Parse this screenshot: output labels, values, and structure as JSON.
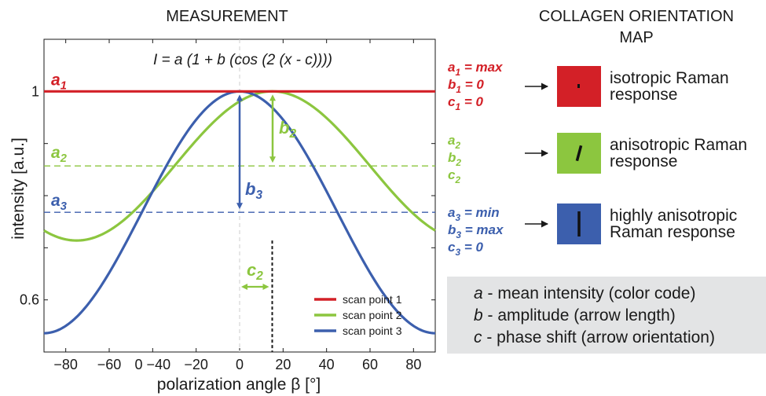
{
  "headings": {
    "measurement": "MEASUREMENT",
    "map_line1": "COLLAGEN ORIENTATION",
    "map_line2": "MAP"
  },
  "formula": "I = a (1 + b (cos (2 (x - c))))",
  "colors": {
    "red": "#d32027",
    "green": "#8cc63f",
    "blue": "#3c5fad",
    "box": "#e3e4e5"
  },
  "chart_data": {
    "type": "line",
    "xlabel": "polarization angle β [°]",
    "ylabel": "intensity [a.u.]",
    "xlim": [
      -90,
      90
    ],
    "ylim": [
      0.5,
      1.1
    ],
    "x_ticks": [
      -80,
      -60,
      -40,
      -20,
      0,
      20,
      40,
      60,
      80
    ],
    "x_tick_labels": [
      "−80",
      "−60",
      "0 −40",
      "−20",
      "0",
      "20",
      "40",
      "60",
      "80"
    ],
    "y_tick_labels": [
      {
        "value": 1.0,
        "label": "1"
      },
      {
        "value": 0.6,
        "label": "0.6"
      }
    ],
    "series": [
      {
        "name": "scan point 1",
        "color": "#d32027",
        "a": 1.0,
        "b": 0.0,
        "c": 0
      },
      {
        "name": "scan point 2",
        "color": "#8cc63f",
        "a": 0.857,
        "b": 0.167,
        "c": 15
      },
      {
        "name": "scan point 3",
        "color": "#3c5fad",
        "a": 0.768,
        "b": 0.302,
        "c": 0
      }
    ],
    "reference_lines": [
      {
        "label": "a",
        "sub": "1",
        "y": 1.0,
        "color": "#d32027",
        "style": "solid"
      },
      {
        "label": "a",
        "sub": "2",
        "y": 0.857,
        "color": "#8cc63f",
        "style": "dashed"
      },
      {
        "label": "a",
        "sub": "3",
        "y": 0.768,
        "color": "#3c5fad",
        "style": "dashed"
      }
    ],
    "annotations": {
      "b2": {
        "label": "b",
        "sub": "2"
      },
      "b3": {
        "label": "b",
        "sub": "3"
      },
      "c2": {
        "label": "c",
        "sub": "2"
      }
    }
  },
  "params": [
    {
      "color": "#d32027",
      "lines": [
        [
          "a",
          "1",
          " = max"
        ],
        [
          "b",
          "1",
          " = 0"
        ],
        [
          "c",
          "1",
          " = 0"
        ]
      ]
    },
    {
      "color": "#8cc63f",
      "lines": [
        [
          "a",
          "2",
          ""
        ],
        [
          "b",
          "2",
          ""
        ],
        [
          "c",
          "2",
          ""
        ]
      ]
    },
    {
      "color": "#3c5fad",
      "lines": [
        [
          "a",
          "3",
          " = min"
        ],
        [
          "b",
          "3",
          " = max"
        ],
        [
          "c",
          "3",
          " = 0"
        ]
      ]
    }
  ],
  "map_items": [
    {
      "color": "#d32027",
      "line1": "isotropic Raman",
      "line2": "response"
    },
    {
      "color": "#8cc63f",
      "line1": "anisotropic Raman",
      "line2": "response"
    },
    {
      "color": "#3c5fad",
      "line1": "highly anisotropic",
      "line2": "Raman response"
    }
  ],
  "legend_box": [
    {
      "sym": "a",
      "text": " - mean intensity (color code)"
    },
    {
      "sym": "b",
      "text": " - amplitude (arrow length)"
    },
    {
      "sym": "c",
      "text": " - phase shift (arrow orientation)"
    }
  ]
}
